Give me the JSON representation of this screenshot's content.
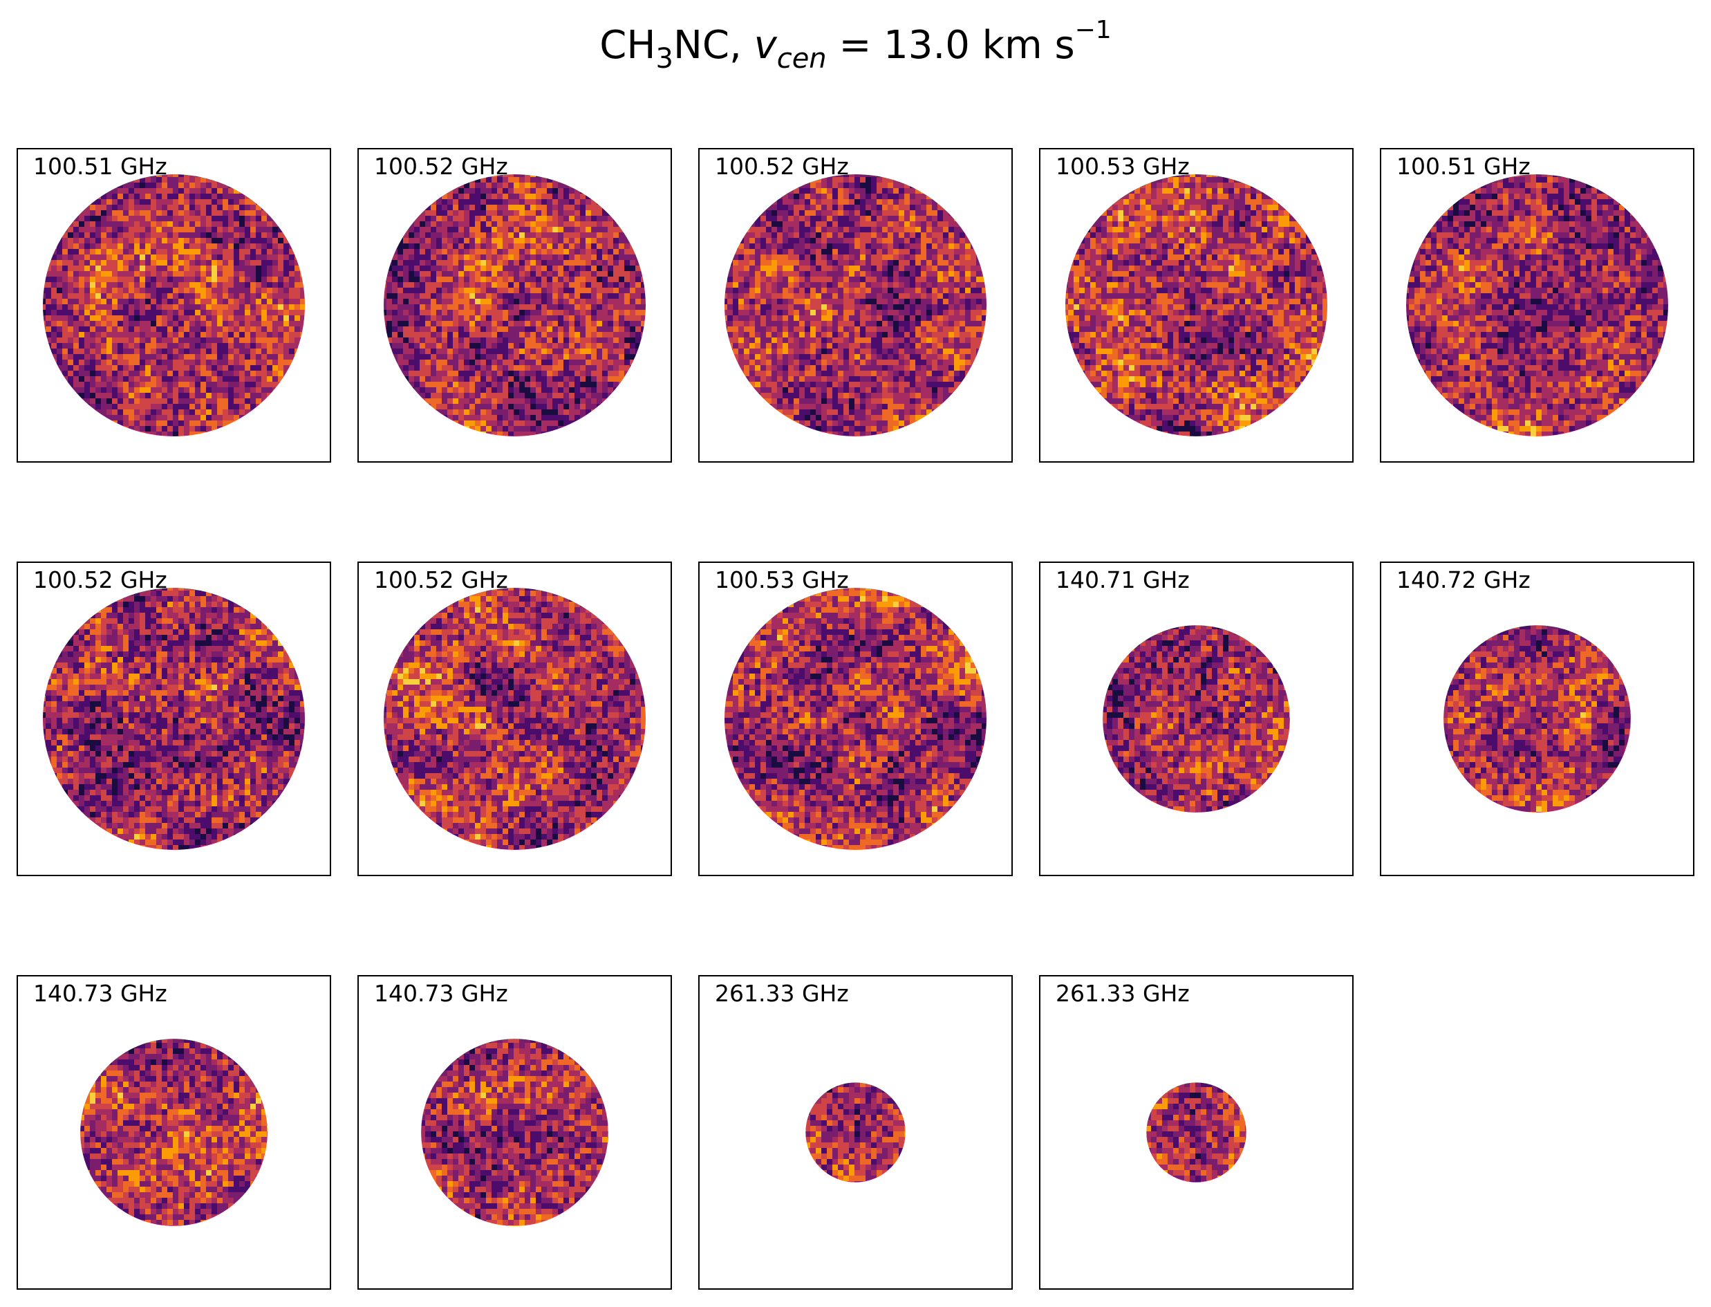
{
  "title": {
    "prefix": "CH",
    "sub3": "3",
    "mid": "NC, ",
    "v": "v",
    "cen": "cen",
    "eq": " =  13.0 km s",
    "exp": "−1"
  },
  "colormap": [
    "#1a0b40",
    "#4b0c6b",
    "#7a1d6d",
    "#a52c60",
    "#cf4446",
    "#ed6925",
    "#fb9b06",
    "#f7d13d"
  ],
  "chart_data": {
    "type": "heatmap",
    "title": "CH3NC, v_cen = 13.0 km s^-1",
    "colormap": "inferno",
    "panels": [
      {
        "label": "100.51 GHz",
        "beam_fraction": 0.84,
        "seed": 11
      },
      {
        "label": "100.52 GHz",
        "beam_fraction": 0.84,
        "seed": 23
      },
      {
        "label": "100.52 GHz",
        "beam_fraction": 0.84,
        "seed": 37
      },
      {
        "label": "100.53 GHz",
        "beam_fraction": 0.84,
        "seed": 41
      },
      {
        "label": "100.51 GHz",
        "beam_fraction": 0.84,
        "seed": 53
      },
      {
        "label": "100.52 GHz",
        "beam_fraction": 0.84,
        "seed": 67
      },
      {
        "label": "100.52 GHz",
        "beam_fraction": 0.84,
        "seed": 71
      },
      {
        "label": "100.53 GHz",
        "beam_fraction": 0.84,
        "seed": 83
      },
      {
        "label": "140.71 GHz",
        "beam_fraction": 0.6,
        "seed": 97
      },
      {
        "label": "140.72 GHz",
        "beam_fraction": 0.6,
        "seed": 101
      },
      {
        "label": "140.73 GHz",
        "beam_fraction": 0.6,
        "seed": 113
      },
      {
        "label": "140.73 GHz",
        "beam_fraction": 0.6,
        "seed": 127
      },
      {
        "label": "261.33 GHz",
        "beam_fraction": 0.32,
        "seed": 131
      },
      {
        "label": "261.33 GHz",
        "beam_fraction": 0.32,
        "seed": 149
      }
    ]
  }
}
